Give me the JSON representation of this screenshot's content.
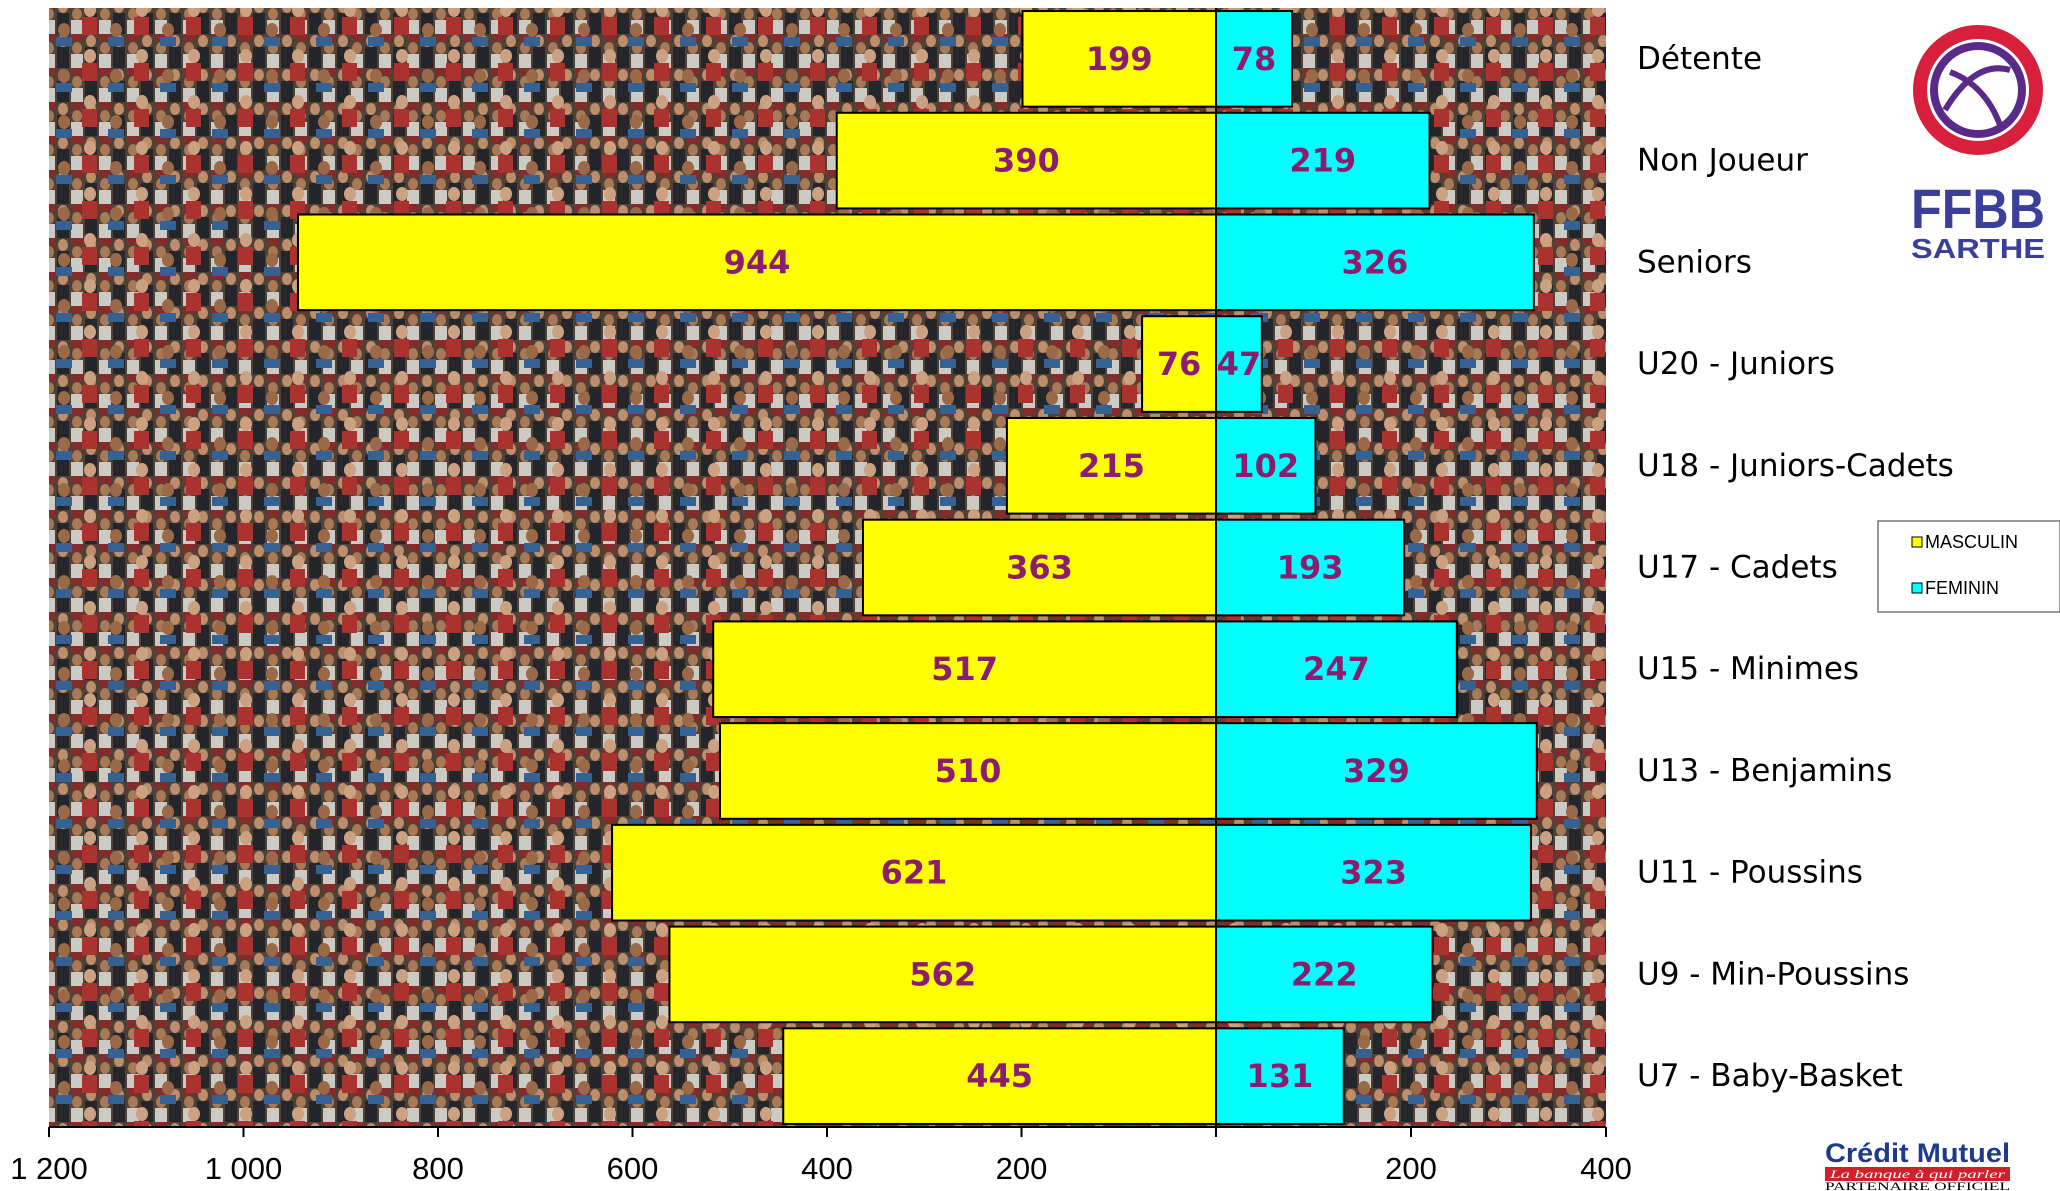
{
  "chart_data": {
    "type": "bar",
    "orientation": "horizontal-diverging",
    "categories": [
      "Détente",
      "Non Joueur",
      "Seniors",
      "U20 - Juniors",
      "U18 - Juniors-Cadets",
      "U17 - Cadets",
      "U15 - Minimes",
      "U13 - Benjamins",
      "U11 - Poussins",
      "U9 - Min-Poussins",
      "U7 - Baby-Basket"
    ],
    "series": [
      {
        "name": "MASCULIN",
        "color": "#ffff00",
        "values": [
          199,
          390,
          944,
          76,
          215,
          363,
          517,
          510,
          621,
          562,
          445
        ]
      },
      {
        "name": "FEMININ",
        "color": "#00ffff",
        "values": [
          78,
          219,
          326,
          47,
          102,
          193,
          247,
          329,
          323,
          222,
          131
        ]
      }
    ],
    "xlim_left": [
      1200,
      0
    ],
    "xlim_right": [
      0,
      400
    ],
    "ticks_left": [
      "1 200",
      "1 000",
      "800",
      "600",
      "400",
      "200"
    ],
    "ticks_left_values": [
      1200,
      1000,
      800,
      600,
      400,
      200
    ],
    "ticks_right": [
      "200",
      "400"
    ],
    "ticks_right_values": [
      200,
      400
    ],
    "legend": {
      "position": "right",
      "labels": [
        "MASCULIN",
        "FEMININ"
      ]
    },
    "background": "crowd photograph"
  },
  "logo": {
    "line1": "FFBB",
    "line2": "SARTHE"
  },
  "sponsor": {
    "name": "Crédit Mutuel",
    "tagline": "La banque à qui parler",
    "partner": "PARTENAIRE OFFICIEL"
  }
}
